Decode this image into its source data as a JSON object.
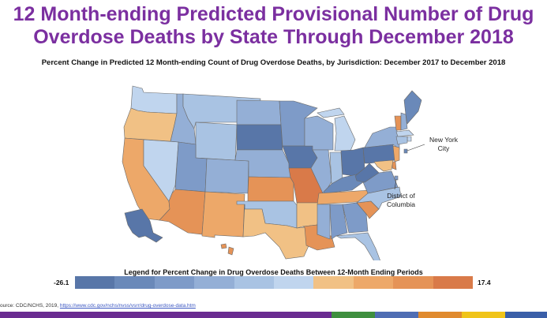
{
  "title_line1": "12 Month-ending Predicted Provisional Number of Drug",
  "title_line2": "Overdose Deaths by State Through December 2018",
  "subtitle": "Percent Change in Predicted 12 Month-ending Count of Drug Overdose Deaths, by Jurisdiction: December 2017 to December 2018",
  "annotations": {
    "nyc_line1": "New York",
    "nyc_line2": "City",
    "dc_line1": "District of",
    "dc_line2": "Columbia"
  },
  "legend": {
    "title": "Legend for Percent Change in Drug Overdose Deaths Between 12-Month Ending Periods",
    "min": "-26.1",
    "max": "17.4",
    "colors": [
      "#5876a8",
      "#6a89b9",
      "#7e9bc8",
      "#94afd6",
      "#a9c3e3",
      "#c0d5ee",
      "#f1c185",
      "#eda869",
      "#e59357",
      "#d97a49"
    ]
  },
  "source": {
    "prefix": "ource:  CDC/NCHS, 2019, ",
    "url": "https://www.cdc.gov/nchs/nvss/vsrr/drug-overdose-data.htm"
  },
  "footer_colors": [
    "#6a2c91",
    "#6a2c91",
    "#6a2c91",
    "#3f8f3f",
    "#4f6db3",
    "#e08a2e",
    "#f0c419",
    "#3a5fa8"
  ],
  "state_colors": {
    "WA": "#c0d5ee",
    "OR": "#f1c185",
    "CA": "#eda869",
    "NV": "#c0d5ee",
    "ID": "#94afd6",
    "MT": "#a9c3e3",
    "WY": "#a9c3e3",
    "UT": "#7e9bc8",
    "AZ": "#e59357",
    "CO": "#94afd6",
    "NM": "#eda869",
    "ND": "#94afd6",
    "SD": "#5876a8",
    "NE": "#94afd6",
    "KS": "#e59357",
    "OK": "#a9c3e3",
    "TX": "#f1c185",
    "MN": "#7e9bc8",
    "IA": "#5876a8",
    "MO": "#d97a49",
    "AR": "#f1c185",
    "LA": "#e59357",
    "WI": "#94afd6",
    "IL": "#94afd6",
    "MI": "#c0d5ee",
    "IN": "#a9c3e3",
    "OH": "#5876a8",
    "KY": "#6a89b9",
    "TN": "#eda869",
    "MS": "#94afd6",
    "AL": "#7e9bc8",
    "GA": "#7e9bc8",
    "FL": "#a9c3e3",
    "SC": "#e59357",
    "NC": "#a9c3e3",
    "VA": "#7e9bc8",
    "WV": "#5876a8",
    "PA": "#5876a8",
    "NY": "#94afd6",
    "VT": "#e59357",
    "NH": "#94afd6",
    "ME": "#6a89b9",
    "MA": "#c0d5ee",
    "RI": "#c0d5ee",
    "CT": "#a9c3e3",
    "NJ": "#eda869",
    "DE": "#e59357",
    "MD": "#f1c185",
    "NYC": "#6a89b9",
    "DC": "#7e9bc8",
    "AK": "#5876a8",
    "HI": "#e59357"
  }
}
